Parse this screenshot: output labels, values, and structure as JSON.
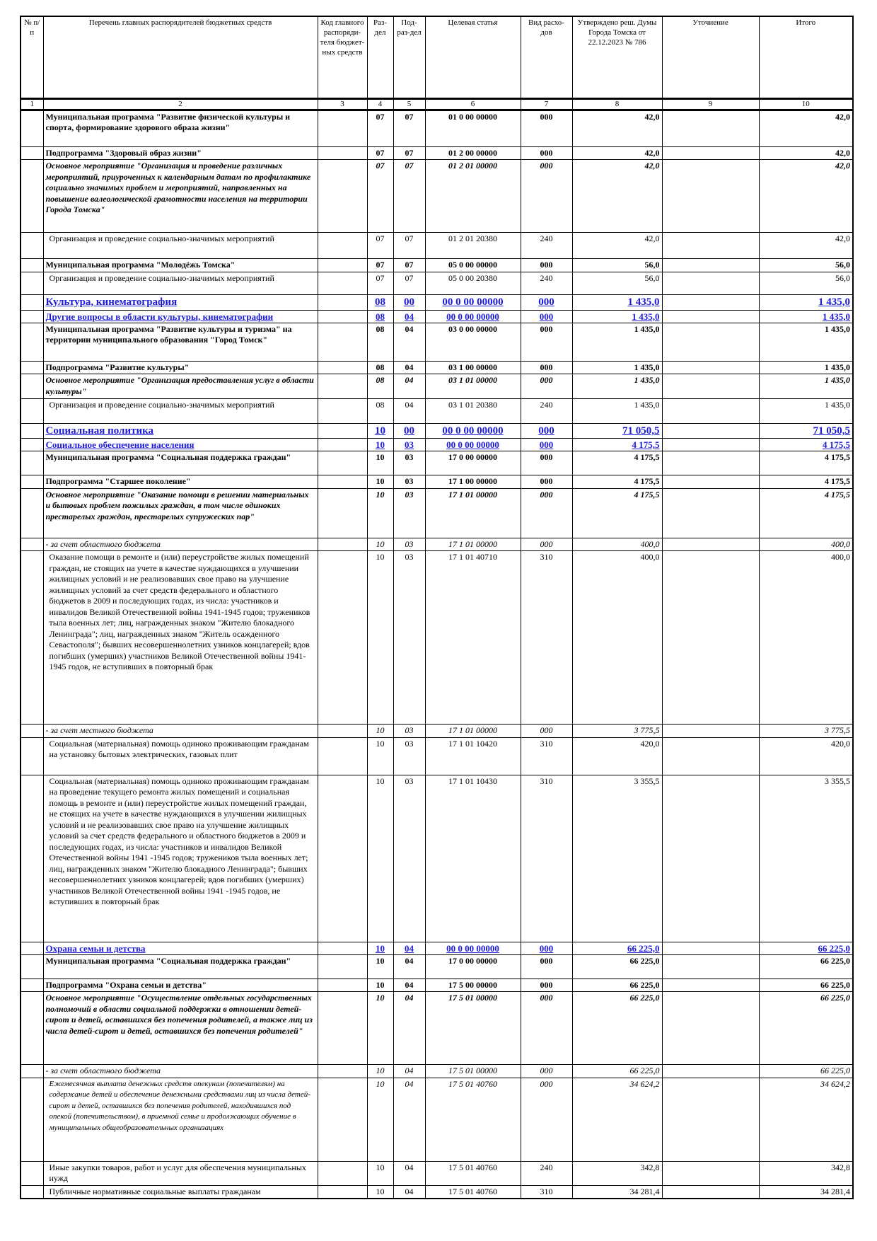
{
  "table": {
    "header": [
      "№ п/п",
      "Перечень главных распорядителей бюджетных средств",
      "Код главного распоряди-теля бюджет-ных средств",
      "Раз-дел",
      "Под-раз-дел",
      "Целевая статья",
      "Вид расхо-дов",
      "Утверждено реш. Думы Города Томска от 22.12.2023 № 786",
      "Уточнение",
      "Итого"
    ],
    "numbers": [
      "1",
      "2",
      "3",
      "4",
      "5",
      "6",
      "7",
      "8",
      "9",
      "10"
    ],
    "rows": [
      {
        "style": "program",
        "name": "Муниципальная программа \"Развитие физической культуры и спорта, формирование здорового образа жизни\"",
        "razdel": "07",
        "podrazdel": "07",
        "csr": "01 0 00 00000",
        "vid": "000",
        "approved": "42,0",
        "total": "42,0"
      },
      {
        "style": "program",
        "name": "Подпрограмма \"Здоровый образ жизни\"",
        "razdel": "07",
        "podrazdel": "07",
        "csr": "01 2 00 00000",
        "vid": "000",
        "approved": "42,0",
        "total": "42,0"
      },
      {
        "style": "event",
        "name": "Основное мероприятие \"Организация и проведение различных мероприятий, приуроченных к календарным датам по профилактике социально значимых проблем и мероприятий, направленных на повышение валеологической грамотности населения на территории Города Томска\"",
        "razdel": "07",
        "podrazdel": "07",
        "csr": "01 2 01 00000",
        "vid": "000",
        "approved": "42,0",
        "total": "42,0"
      },
      {
        "style": "item",
        "name": "Организация и проведение социально-значимых мероприятий",
        "razdel": "07",
        "podrazdel": "07",
        "csr": "01 2 01 20380",
        "vid": "240",
        "approved": "42,0",
        "total": "42,0"
      },
      {
        "style": "program",
        "name": "Муниципальная программа \"Молодёжь Томска\"",
        "razdel": "07",
        "podrazdel": "07",
        "csr": "05 0 00 00000",
        "vid": "000",
        "approved": "56,0",
        "total": "56,0"
      },
      {
        "style": "item",
        "name": "Организация и проведение социально-значимых мероприятий",
        "razdel": "07",
        "podrazdel": "07",
        "csr": "05 0 00 20380",
        "vid": "240",
        "approved": "56,0",
        "total": "56,0"
      },
      {
        "style": "section",
        "name": "Культура, кинематография",
        "razdel": "08",
        "podrazdel": "00",
        "csr": "00 0 00 00000",
        "vid": "000",
        "approved": "1 435,0",
        "total": "1 435,0"
      },
      {
        "style": "subsection",
        "name": "Другие вопросы в области культуры, кинематографии",
        "razdel": "08",
        "podrazdel": "04",
        "csr": "00 0 00 00000",
        "vid": "000",
        "approved": "1 435,0",
        "total": "1 435,0"
      },
      {
        "style": "program",
        "name": "Муниципальная программа \"Развитие культуры и туризма\" на территории муниципального образования \"Город Томск\"",
        "razdel": "08",
        "podrazdel": "04",
        "csr": "03 0 00 00000",
        "vid": "000",
        "approved": "1 435,0",
        "total": "1 435,0"
      },
      {
        "style": "program",
        "name": "Подпрограмма \"Развитие культуры\"",
        "razdel": "08",
        "podrazdel": "04",
        "csr": "03 1 00 00000",
        "vid": "000",
        "approved": "1 435,0",
        "total": "1 435,0"
      },
      {
        "style": "event",
        "name": "Основное мероприятие \"Организация предоставления услуг в области культуры\"",
        "razdel": "08",
        "podrazdel": "04",
        "csr": "03 1 01 00000",
        "vid": "000",
        "approved": "1 435,0",
        "total": "1 435,0"
      },
      {
        "style": "item",
        "name": "Организация и проведение социально-значимых мероприятий",
        "razdel": "08",
        "podrazdel": "04",
        "csr": "03 1 01 20380",
        "vid": "240",
        "approved": "1 435,0",
        "total": "1 435,0"
      },
      {
        "style": "section",
        "name": "Социальная политика",
        "razdel": "10",
        "podrazdel": "00",
        "csr": "00 0 00 00000",
        "vid": "000",
        "approved": "71 050,5",
        "total": "71 050,5"
      },
      {
        "style": "subsection",
        "name": "Социальное обеспечение населения",
        "razdel": "10",
        "podrazdel": "03",
        "csr": "00 0 00 00000",
        "vid": "000",
        "approved": "4 175,5",
        "total": "4 175,5"
      },
      {
        "style": "program",
        "name": "Муниципальная программа \"Социальная поддержка граждан\"",
        "razdel": "10",
        "podrazdel": "03",
        "csr": "17 0 00 00000",
        "vid": "000",
        "approved": "4 175,5",
        "total": "4 175,5"
      },
      {
        "style": "program",
        "name": "Подпрограмма \"Старшее поколение\"",
        "razdel": "10",
        "podrazdel": "03",
        "csr": "17 1 00 00000",
        "vid": "000",
        "approved": "4 175,5",
        "total": "4 175,5"
      },
      {
        "style": "event",
        "name": "Основное мероприятие \"Оказание помощи в решении материальных и бытовых проблем пожилых граждан, в том числе одиноких престарелых граждан, престарелых супружеских пар\"",
        "razdel": "10",
        "podrazdel": "03",
        "csr": "17 1 01 00000",
        "vid": "000",
        "approved": "4 175,5",
        "total": "4 175,5"
      },
      {
        "style": "source",
        "name": "- за счет областного бюджета",
        "razdel": "10",
        "podrazdel": "03",
        "csr": "17 1 01 00000",
        "vid": "000",
        "approved": "400,0",
        "total": "400,0"
      },
      {
        "style": "item",
        "name": "Оказание помощи в ремонте и (или) переустройстве жилых помещений граждан, не стоящих на учете в качестве нуждающихся в улучшении жилищных условий и не реализовавших свое право на улучшение жилищных условий за счет средств федерального и областного бюджетов в 2009 и последующих годах, из числа: участников и инвалидов Великой Отечественной войны 1941-1945 годов; тружеников тыла военных лет; лиц, награжденных знаком \"Жителю блокадного Ленинграда\"; лиц, награжденных знаком \"Житель осажденного Севастополя\"; бывших несовершеннолетних узников концлагерей; вдов погибших (умерших) участников Великой Отечественной войны 1941-1945 годов, не вступивших в повторный брак",
        "razdel": "10",
        "podrazdel": "03",
        "csr": "17 1 01 40710",
        "vid": "310",
        "approved": "400,0",
        "total": "400,0"
      },
      {
        "style": "source",
        "name": "- за счет местного бюджета",
        "razdel": "10",
        "podrazdel": "03",
        "csr": "17 1 01 00000",
        "vid": "000",
        "approved": "3 775,5",
        "total": "3 775,5"
      },
      {
        "style": "item",
        "name": "Социальная (материальная) помощь одиноко проживающим гражданам на установку бытовых электрических, газовых плит",
        "razdel": "10",
        "podrazdel": "03",
        "csr": "17 1 01 10420",
        "vid": "310",
        "approved": "420,0",
        "total": "420,0"
      },
      {
        "style": "item",
        "name": "Социальная (материальная) помощь одиноко проживающим гражданам на проведение текущего ремонта жилых помещений и социальная помощь в ремонте и (или) переустройстве жилых помещений граждан, не стоящих на учете в качестве нуждающихся в улучшении жилищных условий и не реализовавших свое право на улучшение жилищных условий за счет средств федерального и областного бюджетов в 2009 и последующих годах, из числа: участников и инвалидов Великой Отечественной войны 1941 -1945 годов; тружеников тыла военных лет; лиц, награжденных знаком \"Жителю блокадного Ленинграда\"; бывших несовершеннолетних узников концлагерей; вдов погибших (умерших) участников Великой Отечественной войны 1941 -1945 годов, не вступивших в повторный брак",
        "razdel": "10",
        "podrazdel": "03",
        "csr": "17 1 01 10430",
        "vid": "310",
        "approved": "3 355,5",
        "total": "3 355,5"
      },
      {
        "style": "subsection",
        "name": "Охрана семьи и детства",
        "razdel": "10",
        "podrazdel": "04",
        "csr": "00 0 00 00000",
        "vid": "000",
        "approved": "66 225,0",
        "total": "66 225,0"
      },
      {
        "style": "program",
        "name": "Муниципальная программа \"Социальная поддержка граждан\"",
        "razdel": "10",
        "podrazdel": "04",
        "csr": "17 0 00 00000",
        "vid": "000",
        "approved": "66 225,0",
        "total": "66 225,0"
      },
      {
        "style": "program",
        "name": "Подпрограмма \"Охрана семьи и детства\"",
        "razdel": "10",
        "podrazdel": "04",
        "csr": "17 5 00 00000",
        "vid": "000",
        "approved": "66 225,0",
        "total": "66 225,0"
      },
      {
        "style": "event",
        "name": "Основное мероприятие \"Осуществление отдельных государственных полномочий в области социальной поддержки в отношении детей-сирот и детей, оставшихся без попечения родителей, а также лиц из числа детей-сирот и детей, оставшихся без попечения родителей\"",
        "razdel": "10",
        "podrazdel": "04",
        "csr": "17 5 01 00000",
        "vid": "000",
        "approved": "66 225,0",
        "total": "66 225,0"
      },
      {
        "style": "source",
        "name": "- за счет областного бюджета",
        "razdel": "10",
        "podrazdel": "04",
        "csr": "17 5 01 00000",
        "vid": "000",
        "approved": "66 225,0",
        "total": "66 225,0"
      },
      {
        "style": "italic-item",
        "name": "Ежемесячная выплата денежных средств опекунам (попечителям) на содержание детей и обеспечение денежными средствами лиц из числа детей-сирот и детей, оставшихся без попечения родителей, находившихся под опекой (попечительством), в приемной семье и продолжающих обучение в муниципальных общеобразовательных организациях",
        "razdel": "10",
        "podrazdel": "04",
        "csr": "17 5 01 40760",
        "vid": "000",
        "approved": "34 624,2",
        "total": "34 624,2"
      },
      {
        "style": "item",
        "name": "Иные закупки товаров, работ и услуг для обеспечения муниципальных нужд",
        "razdel": "10",
        "podrazdel": "04",
        "csr": "17 5 01 40760",
        "vid": "240",
        "approved": "342,8",
        "total": "342,8"
      },
      {
        "style": "item",
        "name": "Публичные нормативные социальные выплаты гражданам",
        "razdel": "10",
        "podrazdel": "04",
        "csr": "17 5 01 40760",
        "vid": "310",
        "approved": "34 281,4",
        "total": "34 281,4"
      }
    ]
  }
}
